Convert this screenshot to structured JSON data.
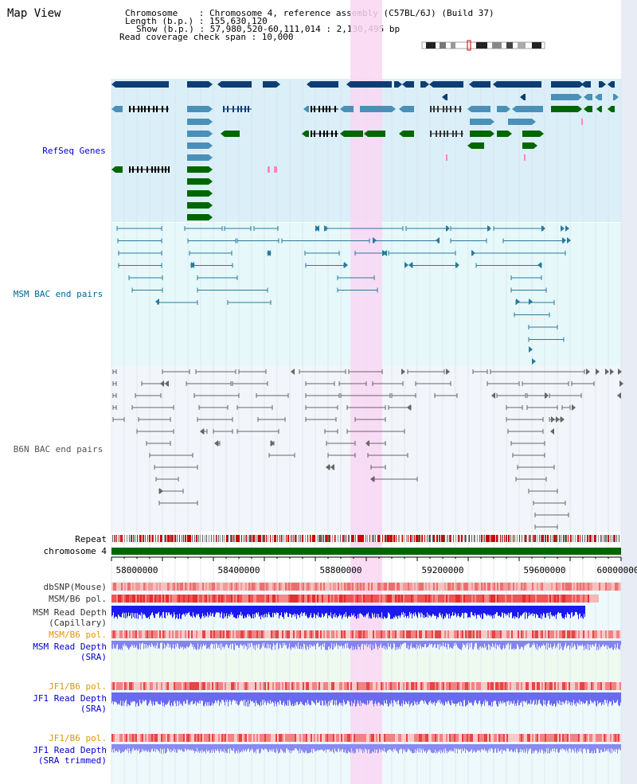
{
  "view_title": "Map View",
  "info": {
    "chromosome": "Chromosome    : Chromosome 4, reference assembly (C57BL/6J) (Build 37)",
    "length": "Length (b.p.) : 155,630,120",
    "show": "Show (b.p.) : 57,980,520-60,111,014 : 2,130,495 bp",
    "coverage": "Read coverage check span : 10,000"
  },
  "tracks": {
    "refseq": {
      "label": "RefSeq Genes",
      "color": "#0000cc"
    },
    "msm_bac": {
      "label": "MSM BAC end pairs",
      "color": "#006699"
    },
    "b6n_bac": {
      "label": "B6N BAC end pairs",
      "color": "#555555"
    },
    "repeat": {
      "label": "Repeat"
    },
    "chromosome": {
      "label": "chromosome 4",
      "color": "#006600"
    },
    "dbsnp": {
      "label": "dbSNP(Mouse)"
    },
    "msm_pol": {
      "label": "MSM/B6 pol."
    },
    "msm_depth_cap": {
      "line1": "MSM Read Depth",
      "line2": "(Capillary)"
    },
    "msm_pol_sra": {
      "label": "MSM/B6 pol.",
      "color": "#e69500"
    },
    "msm_depth_sra": {
      "line1": "MSM Read Depth",
      "line2": "(SRA)"
    },
    "jf1_pol_1": {
      "label": "JF1/B6 pol.",
      "color": "#e69500"
    },
    "jf1_depth_sra": {
      "line1": "JF1 Read Depth",
      "line2": "(SRA)"
    },
    "jf1_pol_2": {
      "label": "JF1/B6 pol.",
      "color": "#e69500"
    },
    "jf1_depth_trim": {
      "line1": "JF1 Read Depth",
      "line2": "(SRA trimmed)"
    }
  },
  "axis": {
    "ticks": [
      "58000000",
      "58400000",
      "58800000",
      "59200000",
      "59600000",
      "60000000"
    ]
  },
  "colors": {
    "refseq_bg": "#dbeff9",
    "bac_bg": "#e6f8fa",
    "b6n_bg": "#f2f6fa",
    "highlight": "#f9d7f3",
    "gene_dark": "#0d3d73",
    "gene_mid": "#4a90b8",
    "gene_green": "#006600"
  }
}
